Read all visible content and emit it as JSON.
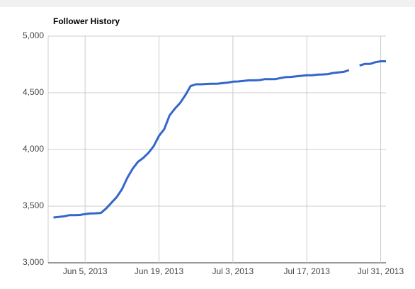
{
  "chart_data": {
    "type": "line",
    "title": "Follower History",
    "x": [
      "2013-05-30",
      "2013-05-31",
      "2013-06-01",
      "2013-06-02",
      "2013-06-03",
      "2013-06-04",
      "2013-06-05",
      "2013-06-06",
      "2013-06-07",
      "2013-06-08",
      "2013-06-09",
      "2013-06-10",
      "2013-06-11",
      "2013-06-12",
      "2013-06-13",
      "2013-06-14",
      "2013-06-15",
      "2013-06-16",
      "2013-06-17",
      "2013-06-18",
      "2013-06-19",
      "2013-06-20",
      "2013-06-21",
      "2013-06-22",
      "2013-06-23",
      "2013-06-24",
      "2013-06-25",
      "2013-06-26",
      "2013-06-27",
      "2013-06-28",
      "2013-06-29",
      "2013-06-30",
      "2013-07-01",
      "2013-07-02",
      "2013-07-03",
      "2013-07-04",
      "2013-07-05",
      "2013-07-06",
      "2013-07-07",
      "2013-07-08",
      "2013-07-09",
      "2013-07-10",
      "2013-07-11",
      "2013-07-12",
      "2013-07-13",
      "2013-07-14",
      "2013-07-15",
      "2013-07-16",
      "2013-07-17",
      "2013-07-18",
      "2013-07-19",
      "2013-07-20",
      "2013-07-21",
      "2013-07-22",
      "2013-07-23",
      "2013-07-24",
      "2013-07-25",
      "2013-07-26",
      "2013-07-27",
      "2013-07-28",
      "2013-07-29",
      "2013-07-30",
      "2013-07-31",
      "2013-08-01"
    ],
    "series": [
      {
        "color": "#3366cc",
        "values": [
          3400,
          3405,
          3410,
          3420,
          3420,
          3422,
          3430,
          3435,
          3437,
          3440,
          3480,
          3530,
          3580,
          3650,
          3750,
          3830,
          3890,
          3925,
          3970,
          4030,
          4120,
          4180,
          4300,
          4360,
          4410,
          4480,
          4560,
          4575,
          4575,
          4578,
          4580,
          4580,
          4585,
          4590,
          4598,
          4600,
          4605,
          4610,
          4610,
          4612,
          4620,
          4620,
          4620,
          4630,
          4638,
          4640,
          4645,
          4650,
          4655,
          4655,
          4660,
          4662,
          4665,
          4675,
          4680,
          4685,
          4700,
          null,
          4740,
          4755,
          4755,
          4770,
          4778,
          4778
        ]
      }
    ],
    "xlim": [
      "2013-05-29",
      "2013-08-01"
    ],
    "xticks": [
      {
        "value": "2013-06-05",
        "label": "Jun 5, 2013"
      },
      {
        "value": "2013-06-19",
        "label": "Jun 19, 2013"
      },
      {
        "value": "2013-07-03",
        "label": "Jul 3, 2013"
      },
      {
        "value": "2013-07-17",
        "label": "Jul 17, 2013"
      },
      {
        "value": "2013-07-31",
        "label": "Jul 31, 2013"
      }
    ],
    "ylim": [
      3000,
      5000
    ],
    "yticks": [
      {
        "value": 3000,
        "label": "3,000"
      },
      {
        "value": 3500,
        "label": "3,500"
      },
      {
        "value": 4000,
        "label": "4,000"
      },
      {
        "value": 4500,
        "label": "4,500"
      },
      {
        "value": 5000,
        "label": "5,000"
      }
    ],
    "grid": true
  }
}
